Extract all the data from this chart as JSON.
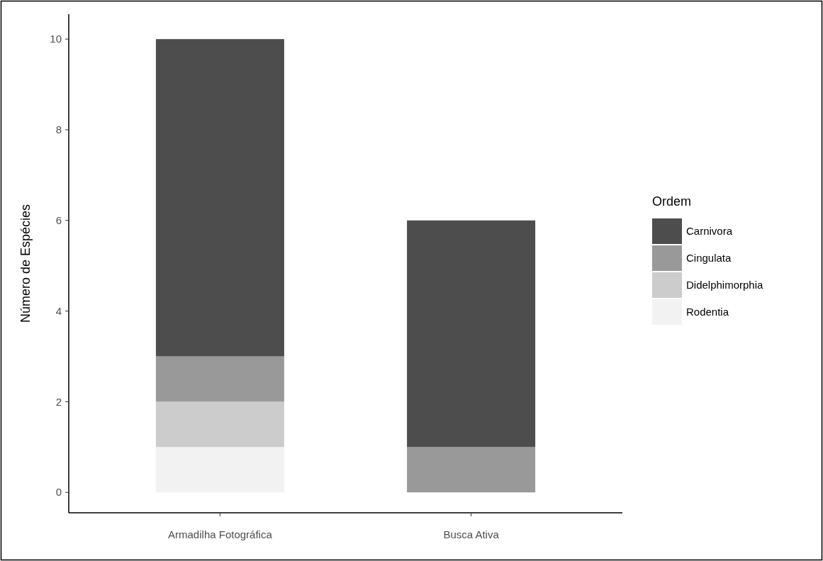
{
  "chart_data": {
    "type": "bar",
    "stacked": true,
    "ylabel": "Número de Espécies",
    "legend_title": "Ordem",
    "legend": "right",
    "grid": false,
    "categories": [
      "Armadilha Fotográfica",
      "Busca Ativa"
    ],
    "series": [
      {
        "name": "Rodentia",
        "color": "#f2f2f2",
        "values": [
          1,
          0
        ]
      },
      {
        "name": "Didelphimorphia",
        "color": "#cccccc",
        "values": [
          1,
          0
        ]
      },
      {
        "name": "Cingulata",
        "color": "#999999",
        "values": [
          1,
          1
        ]
      },
      {
        "name": "Carnivora",
        "color": "#4d4d4d",
        "values": [
          7,
          5
        ]
      }
    ],
    "ylim": [
      -0.45,
      10.55
    ],
    "yticks": [
      0,
      2,
      4,
      6,
      8,
      10
    ]
  }
}
